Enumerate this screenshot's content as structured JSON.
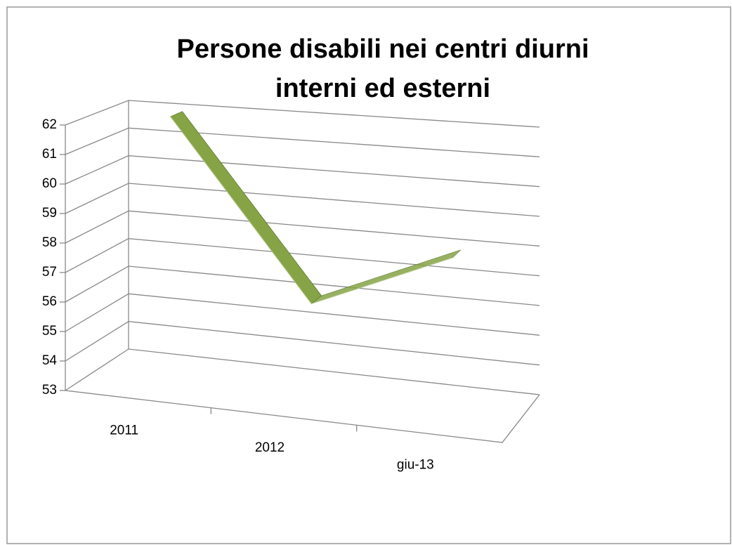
{
  "chart_data": {
    "type": "line3d",
    "title": "Persone disabili nei centri diurni interni ed esterni",
    "categories": [
      "2011",
      "2012",
      "giu-13"
    ],
    "series": [
      {
        "name": "Persone disabili",
        "color": "#86a446",
        "values": [
          62,
          56,
          58
        ]
      }
    ],
    "ylim": [
      53,
      62
    ],
    "yticks": [
      53,
      54,
      55,
      56,
      57,
      58,
      59,
      60,
      61,
      62
    ],
    "grid": true
  }
}
